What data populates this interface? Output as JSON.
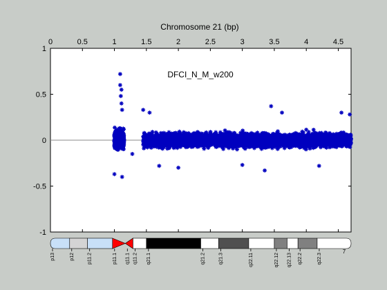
{
  "chart_data": {
    "type": "scatter",
    "title": "Chromosome 21 (bp)",
    "xlabel": "",
    "ylabel": "",
    "xlim": [
      0,
      4.7
    ],
    "ylim": [
      -1,
      1
    ],
    "x_ticks": [
      0,
      0.5,
      1,
      1.5,
      2,
      2.5,
      3,
      3.5,
      4,
      4.5
    ],
    "x_tick_labels": [
      "0",
      "0.5",
      "1",
      "1.5",
      "2",
      "2.5",
      "3",
      "3.5",
      "4",
      "4.5"
    ],
    "y_ticks": [
      -1,
      -0.5,
      0,
      0.5,
      1
    ],
    "y_tick_labels": [
      "-1",
      "-0.5",
      "0",
      "0.5",
      "1"
    ],
    "x_scale_note": "7",
    "grid": false,
    "annotation": "DFCI_N_M_w200",
    "reference_line_y": 0,
    "series": [
      {
        "name": "",
        "color": "#0000bf",
        "marker": "asterisk",
        "segments": [
          {
            "x_range": [
              1.0,
              1.06
            ],
            "typical_range": [
              -0.25,
              0.25
            ]
          },
          {
            "x_range": [
              1.06,
              1.1
            ],
            "typical_range": [
              -0.3,
              0.35
            ]
          },
          {
            "x_range": [
              1.1,
              1.15
            ],
            "typical_range": [
              -0.25,
              0.25
            ]
          },
          {
            "x_range": [
              1.45,
              4.7
            ],
            "typical_range": [
              -0.2,
              0.2
            ]
          }
        ],
        "notable_points": [
          {
            "x": 1.09,
            "y": 0.72
          },
          {
            "x": 1.09,
            "y": 0.6
          },
          {
            "x": 1.11,
            "y": 0.55
          },
          {
            "x": 1.1,
            "y": 0.48
          },
          {
            "x": 1.11,
            "y": 0.4
          },
          {
            "x": 1.12,
            "y": 0.33
          },
          {
            "x": 1.0,
            "y": -0.37
          },
          {
            "x": 1.12,
            "y": -0.4
          },
          {
            "x": 1.28,
            "y": -0.15
          },
          {
            "x": 1.45,
            "y": 0.33
          },
          {
            "x": 1.55,
            "y": 0.3
          },
          {
            "x": 3.45,
            "y": 0.37
          },
          {
            "x": 3.62,
            "y": 0.3
          },
          {
            "x": 4.55,
            "y": 0.3
          },
          {
            "x": 4.68,
            "y": 0.28
          },
          {
            "x": 1.7,
            "y": -0.28
          },
          {
            "x": 2.0,
            "y": -0.3
          },
          {
            "x": 3.0,
            "y": -0.27
          },
          {
            "x": 3.35,
            "y": -0.33
          },
          {
            "x": 4.2,
            "y": -0.28
          }
        ]
      }
    ],
    "ideogram": {
      "bands": [
        {
          "label": "p13",
          "x0": 0.0,
          "x1": 0.3,
          "color": "#c8e0f8",
          "rounded_left": true
        },
        {
          "label": "p12",
          "x0": 0.3,
          "x1": 0.58,
          "color": "#d4d4d4"
        },
        {
          "label": "p11.2",
          "x0": 0.58,
          "x1": 0.97,
          "color": "#c8e0f8"
        },
        {
          "label": "p11.1",
          "x0": 0.97,
          "x1": 1.17,
          "color": "#ff0000",
          "shape": "centromere-left"
        },
        {
          "label": "q11.1",
          "x0": 1.17,
          "x1": 1.29,
          "color": "#ff0000",
          "shape": "centromere-right"
        },
        {
          "label": "q11.2",
          "x0": 1.29,
          "x1": 1.5,
          "color": "#ffffff"
        },
        {
          "label": "q21.1",
          "x0": 1.5,
          "x1": 2.35,
          "color": "#000000"
        },
        {
          "label": "q21.2",
          "x0": 2.35,
          "x1": 2.63,
          "color": "#ffffff"
        },
        {
          "label": "q21.3",
          "x0": 2.63,
          "x1": 3.1,
          "color": "#505050"
        },
        {
          "label": "q22.11",
          "x0": 3.1,
          "x1": 3.5,
          "color": "#ffffff"
        },
        {
          "label": "q22.12",
          "x0": 3.5,
          "x1": 3.7,
          "color": "#808080"
        },
        {
          "label": "q22.13",
          "x0": 3.7,
          "x1": 3.87,
          "color": "#ffffff"
        },
        {
          "label": "q22.2",
          "x0": 3.87,
          "x1": 4.17,
          "color": "#808080"
        },
        {
          "label": "q22.3",
          "x0": 4.17,
          "x1": 4.7,
          "color": "#ffffff",
          "rounded_right": true
        }
      ]
    }
  }
}
